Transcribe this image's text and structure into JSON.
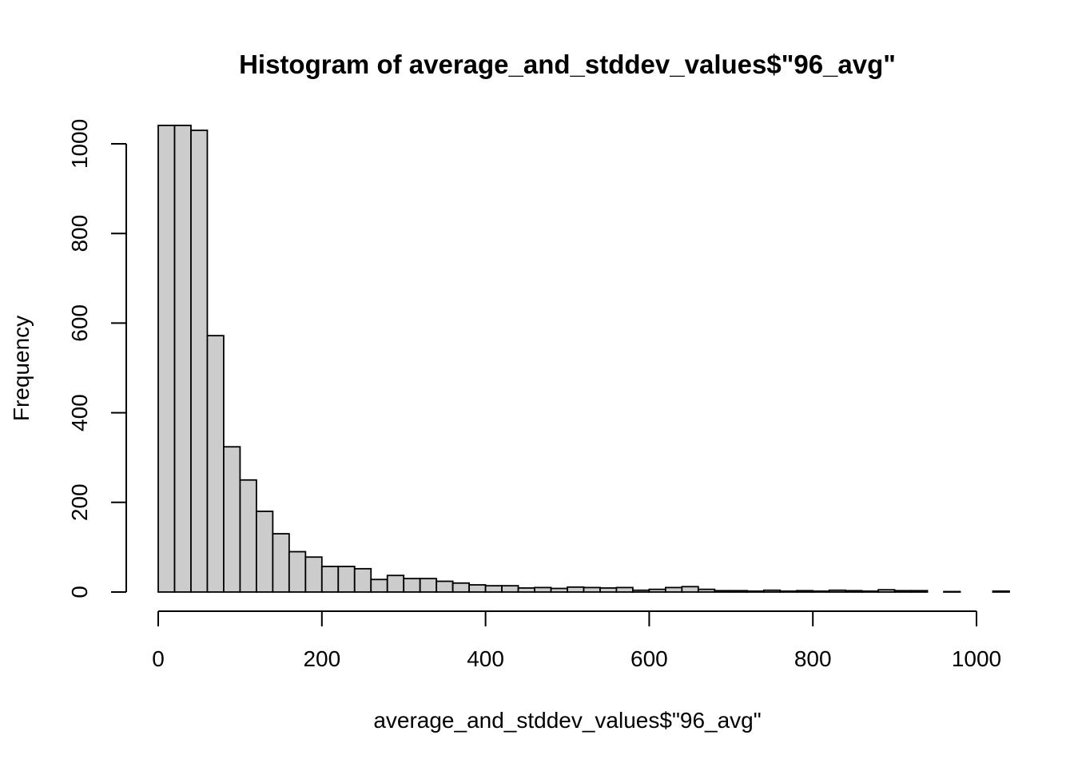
{
  "chart_data": {
    "type": "bar",
    "title": "Histogram of average_and_stddev_values$\"96_avg\"",
    "xlabel": "average_and_stddev_values$\"96_avg\"",
    "ylabel": "Frequency",
    "bin_width": 20,
    "x": [
      0,
      20,
      40,
      60,
      80,
      100,
      120,
      140,
      160,
      180,
      200,
      220,
      240,
      260,
      280,
      300,
      320,
      340,
      360,
      380,
      400,
      420,
      440,
      460,
      480,
      500,
      520,
      540,
      560,
      580,
      600,
      620,
      640,
      660,
      680,
      700,
      720,
      740,
      760,
      780,
      800,
      820,
      840,
      860,
      880,
      900,
      920,
      940,
      960,
      980,
      1000,
      1020
    ],
    "values": [
      1100,
      1100,
      1030,
      572,
      324,
      250,
      180,
      130,
      90,
      78,
      57,
      57,
      52,
      28,
      37,
      30,
      30,
      24,
      20,
      16,
      14,
      14,
      9,
      10,
      8,
      11,
      10,
      9,
      10,
      4,
      6,
      10,
      12,
      6,
      3,
      3,
      2,
      4,
      2,
      3,
      2,
      4,
      3,
      2,
      5,
      3,
      3,
      0,
      1,
      0,
      0,
      2
    ],
    "xlim": [
      0,
      1040
    ],
    "ylim": [
      0,
      1040
    ],
    "x_ticks": [
      0,
      200,
      400,
      600,
      800,
      1000
    ],
    "y_ticks": [
      0,
      200,
      400,
      600,
      800,
      1000
    ],
    "x_tick_labels": [
      "0",
      "200",
      "400",
      "600",
      "800",
      "1000"
    ],
    "y_tick_labels": [
      "0",
      "200",
      "400",
      "600",
      "800",
      "1000"
    ],
    "grid": false,
    "bar_color": "#cccccc",
    "edge_color": "#000000"
  }
}
